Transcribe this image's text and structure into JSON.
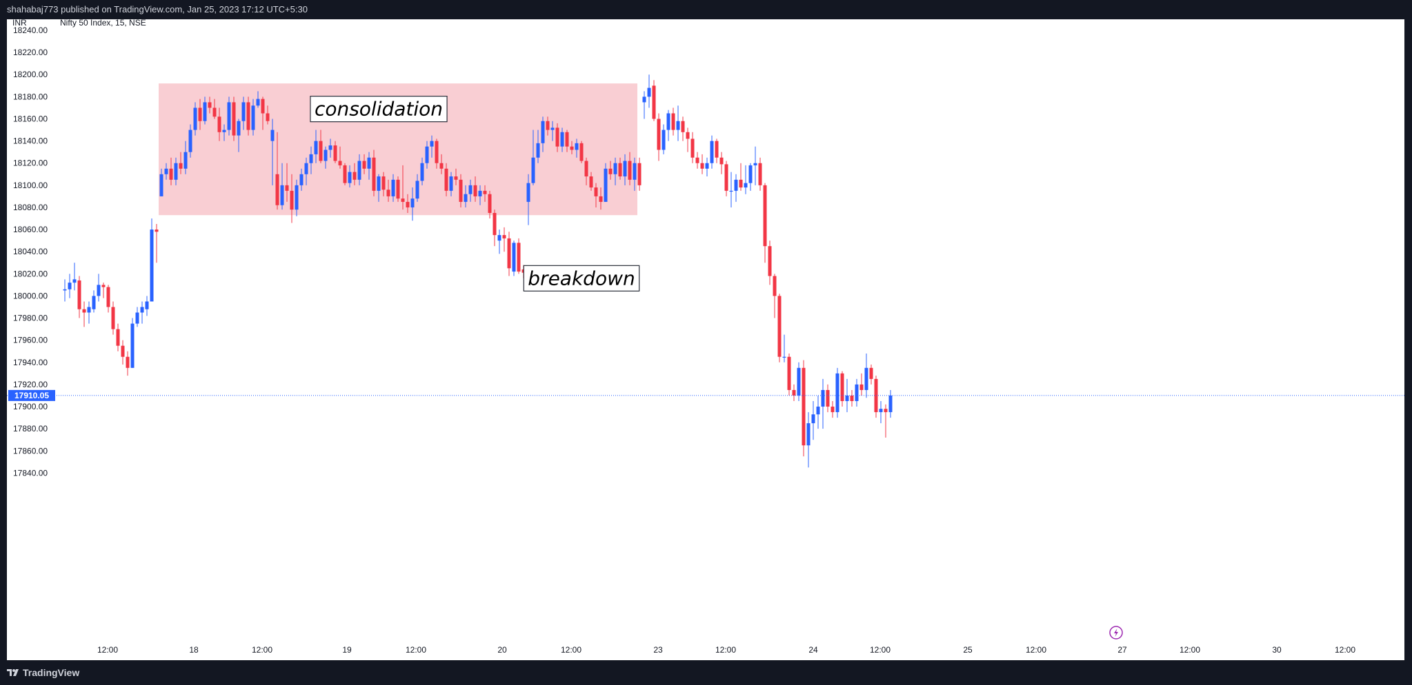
{
  "header": {
    "published": "shahabaj773 published on TradingView.com, Jan 25, 2023 17:12 UTC+5:30"
  },
  "footer": {
    "brand": "TradingView"
  },
  "chart_data": {
    "type": "candlestick",
    "currency": "INR",
    "symbol": "Nifty 50 Index, 15, NSE",
    "colors": {
      "up": "#2962ff",
      "down": "#f23645",
      "zone": "#f9ced3",
      "last_price": "#2962ff"
    },
    "ylim": [
      17830,
      18250
    ],
    "y_ticks": [
      "18240.00",
      "18220.00",
      "18200.00",
      "18180.00",
      "18160.00",
      "18140.00",
      "18120.00",
      "18100.00",
      "18080.00",
      "18060.00",
      "18040.00",
      "18020.00",
      "18000.00",
      "17980.00",
      "17960.00",
      "17940.00",
      "17920.00",
      "17900.00",
      "17880.00",
      "17860.00",
      "17840.00"
    ],
    "x_ticks": [
      "12:00",
      "18",
      "12:00",
      "19",
      "12:00",
      "20",
      "12:00",
      "23",
      "12:00",
      "24",
      "12:00",
      "25",
      "12:00",
      "27",
      "12:00",
      "30",
      "12:00"
    ],
    "last_price": "17910.05",
    "consolidation_zone": {
      "from_candle": 20,
      "to_candle": 118,
      "top": 18192,
      "bottom": 18073
    },
    "annotations": [
      {
        "text": "consolidation",
        "candle": 65,
        "price": 18168
      },
      {
        "text": "breakdown",
        "candle": 107,
        "price": 18015
      }
    ],
    "candles": [
      {
        "o": 18005,
        "h": 18015,
        "l": 17995,
        "c": 18006
      },
      {
        "o": 18006,
        "h": 18020,
        "l": 17998,
        "c": 18012
      },
      {
        "o": 18012,
        "h": 18030,
        "l": 18005,
        "c": 18015
      },
      {
        "o": 18014,
        "h": 18018,
        "l": 17980,
        "c": 17988
      },
      {
        "o": 17988,
        "h": 17995,
        "l": 17972,
        "c": 17985
      },
      {
        "o": 17985,
        "h": 17995,
        "l": 17975,
        "c": 17990
      },
      {
        "o": 17988,
        "h": 18005,
        "l": 17985,
        "c": 18000
      },
      {
        "o": 18000,
        "h": 18020,
        "l": 17995,
        "c": 18010
      },
      {
        "o": 18010,
        "h": 18012,
        "l": 17998,
        "c": 18008
      },
      {
        "o": 18008,
        "h": 18010,
        "l": 17985,
        "c": 17990
      },
      {
        "o": 17990,
        "h": 17995,
        "l": 17965,
        "c": 17970
      },
      {
        "o": 17970,
        "h": 17975,
        "l": 17950,
        "c": 17955
      },
      {
        "o": 17955,
        "h": 17960,
        "l": 17938,
        "c": 17945
      },
      {
        "o": 17945,
        "h": 17950,
        "l": 17928,
        "c": 17935
      },
      {
        "o": 17935,
        "h": 17980,
        "l": 17935,
        "c": 17975
      },
      {
        "o": 17975,
        "h": 17990,
        "l": 17972,
        "c": 17985
      },
      {
        "o": 17985,
        "h": 17995,
        "l": 17975,
        "c": 17990
      },
      {
        "o": 17988,
        "h": 18000,
        "l": 17982,
        "c": 17995
      },
      {
        "o": 17995,
        "h": 18070,
        "l": 17995,
        "c": 18060
      },
      {
        "o": 18060,
        "h": 18065,
        "l": 18030,
        "c": 18058
      },
      {
        "o": 18090,
        "h": 18115,
        "l": 18090,
        "c": 18110
      },
      {
        "o": 18110,
        "h": 18120,
        "l": 18105,
        "c": 18115
      },
      {
        "o": 18115,
        "h": 18125,
        "l": 18100,
        "c": 18105
      },
      {
        "o": 18105,
        "h": 18125,
        "l": 18100,
        "c": 18120
      },
      {
        "o": 18120,
        "h": 18130,
        "l": 18110,
        "c": 18115
      },
      {
        "o": 18115,
        "h": 18140,
        "l": 18110,
        "c": 18130
      },
      {
        "o": 18130,
        "h": 18155,
        "l": 18125,
        "c": 18150
      },
      {
        "o": 18150,
        "h": 18175,
        "l": 18145,
        "c": 18170
      },
      {
        "o": 18170,
        "h": 18178,
        "l": 18150,
        "c": 18158
      },
      {
        "o": 18158,
        "h": 18180,
        "l": 18155,
        "c": 18175
      },
      {
        "o": 18175,
        "h": 18180,
        "l": 18165,
        "c": 18170
      },
      {
        "o": 18170,
        "h": 18178,
        "l": 18160,
        "c": 18162
      },
      {
        "o": 18162,
        "h": 18170,
        "l": 18140,
        "c": 18148
      },
      {
        "o": 18148,
        "h": 18155,
        "l": 18140,
        "c": 18150
      },
      {
        "o": 18150,
        "h": 18180,
        "l": 18145,
        "c": 18175
      },
      {
        "o": 18175,
        "h": 18180,
        "l": 18140,
        "c": 18145
      },
      {
        "o": 18145,
        "h": 18160,
        "l": 18130,
        "c": 18158
      },
      {
        "o": 18158,
        "h": 18180,
        "l": 18150,
        "c": 18175
      },
      {
        "o": 18175,
        "h": 18180,
        "l": 18145,
        "c": 18150
      },
      {
        "o": 18150,
        "h": 18178,
        "l": 18145,
        "c": 18172
      },
      {
        "o": 18172,
        "h": 18185,
        "l": 18170,
        "c": 18178
      },
      {
        "o": 18178,
        "h": 18180,
        "l": 18150,
        "c": 18165
      },
      {
        "o": 18165,
        "h": 18172,
        "l": 18155,
        "c": 18158
      },
      {
        "o": 18140,
        "h": 18160,
        "l": 18100,
        "c": 18150
      },
      {
        "o": 18110,
        "h": 18148,
        "l": 18078,
        "c": 18082
      },
      {
        "o": 18082,
        "h": 18120,
        "l": 18078,
        "c": 18100
      },
      {
        "o": 18100,
        "h": 18120,
        "l": 18085,
        "c": 18095
      },
      {
        "o": 18095,
        "h": 18110,
        "l": 18066,
        "c": 18078
      },
      {
        "o": 18078,
        "h": 18105,
        "l": 18072,
        "c": 18100
      },
      {
        "o": 18100,
        "h": 18115,
        "l": 18095,
        "c": 18110
      },
      {
        "o": 18110,
        "h": 18125,
        "l": 18100,
        "c": 18120
      },
      {
        "o": 18120,
        "h": 18135,
        "l": 18110,
        "c": 18128
      },
      {
        "o": 18128,
        "h": 18150,
        "l": 18120,
        "c": 18140
      },
      {
        "o": 18140,
        "h": 18150,
        "l": 18120,
        "c": 18122
      },
      {
        "o": 18122,
        "h": 18135,
        "l": 18115,
        "c": 18132
      },
      {
        "o": 18132,
        "h": 18142,
        "l": 18125,
        "c": 18136
      },
      {
        "o": 18136,
        "h": 18140,
        "l": 18120,
        "c": 18122
      },
      {
        "o": 18122,
        "h": 18135,
        "l": 18115,
        "c": 18118
      },
      {
        "o": 18118,
        "h": 18120,
        "l": 18100,
        "c": 18102
      },
      {
        "o": 18102,
        "h": 18118,
        "l": 18098,
        "c": 18112
      },
      {
        "o": 18112,
        "h": 18120,
        "l": 18100,
        "c": 18105
      },
      {
        "o": 18105,
        "h": 18128,
        "l": 18100,
        "c": 18122
      },
      {
        "o": 18122,
        "h": 18128,
        "l": 18110,
        "c": 18115
      },
      {
        "o": 18115,
        "h": 18130,
        "l": 18105,
        "c": 18125
      },
      {
        "o": 18125,
        "h": 18132,
        "l": 18090,
        "c": 18095
      },
      {
        "o": 18095,
        "h": 18110,
        "l": 18085,
        "c": 18108
      },
      {
        "o": 18108,
        "h": 18112,
        "l": 18090,
        "c": 18096
      },
      {
        "o": 18096,
        "h": 18105,
        "l": 18085,
        "c": 18090
      },
      {
        "o": 18090,
        "h": 18110,
        "l": 18085,
        "c": 18105
      },
      {
        "o": 18105,
        "h": 18108,
        "l": 18085,
        "c": 18088
      },
      {
        "o": 18088,
        "h": 18118,
        "l": 18078,
        "c": 18085
      },
      {
        "o": 18085,
        "h": 18092,
        "l": 18075,
        "c": 18080
      },
      {
        "o": 18080,
        "h": 18098,
        "l": 18068,
        "c": 18088
      },
      {
        "o": 18088,
        "h": 18110,
        "l": 18085,
        "c": 18104
      },
      {
        "o": 18104,
        "h": 18125,
        "l": 18100,
        "c": 18120
      },
      {
        "o": 18120,
        "h": 18140,
        "l": 18115,
        "c": 18135
      },
      {
        "o": 18135,
        "h": 18145,
        "l": 18125,
        "c": 18140
      },
      {
        "o": 18140,
        "h": 18142,
        "l": 18115,
        "c": 18120
      },
      {
        "o": 18120,
        "h": 18128,
        "l": 18110,
        "c": 18115
      },
      {
        "o": 18115,
        "h": 18120,
        "l": 18090,
        "c": 18095
      },
      {
        "o": 18095,
        "h": 18112,
        "l": 18090,
        "c": 18108
      },
      {
        "o": 18108,
        "h": 18115,
        "l": 18100,
        "c": 18105
      },
      {
        "o": 18105,
        "h": 18110,
        "l": 18080,
        "c": 18085
      },
      {
        "o": 18085,
        "h": 18100,
        "l": 18080,
        "c": 18092
      },
      {
        "o": 18092,
        "h": 18105,
        "l": 18085,
        "c": 18100
      },
      {
        "o": 18100,
        "h": 18108,
        "l": 18085,
        "c": 18090
      },
      {
        "o": 18090,
        "h": 18100,
        "l": 18082,
        "c": 18095
      },
      {
        "o": 18095,
        "h": 18100,
        "l": 18085,
        "c": 18092
      },
      {
        "o": 18092,
        "h": 18095,
        "l": 18070,
        "c": 18075
      },
      {
        "o": 18075,
        "h": 18078,
        "l": 18045,
        "c": 18055
      },
      {
        "o": 18050,
        "h": 18060,
        "l": 18038,
        "c": 18055
      },
      {
        "o": 18055,
        "h": 18062,
        "l": 18040,
        "c": 18052
      },
      {
        "o": 18052,
        "h": 18058,
        "l": 18018,
        "c": 18025
      },
      {
        "o": 18022,
        "h": 18050,
        "l": 18018,
        "c": 18048
      },
      {
        "o": 18048,
        "h": 18052,
        "l": 18020,
        "c": 18022
      },
      {
        "o": 18024,
        "h": 18028,
        "l": 18016,
        "c": 18021
      },
      {
        "o": 18085,
        "h": 18110,
        "l": 18064,
        "c": 18102
      },
      {
        "o": 18102,
        "h": 18150,
        "l": 18100,
        "c": 18125
      },
      {
        "o": 18125,
        "h": 18150,
        "l": 18120,
        "c": 18138
      },
      {
        "o": 18138,
        "h": 18162,
        "l": 18130,
        "c": 18158
      },
      {
        "o": 18158,
        "h": 18162,
        "l": 18145,
        "c": 18150
      },
      {
        "o": 18150,
        "h": 18158,
        "l": 18140,
        "c": 18152
      },
      {
        "o": 18152,
        "h": 18156,
        "l": 18130,
        "c": 18135
      },
      {
        "o": 18135,
        "h": 18152,
        "l": 18130,
        "c": 18148
      },
      {
        "o": 18148,
        "h": 18150,
        "l": 18130,
        "c": 18135
      },
      {
        "o": 18135,
        "h": 18140,
        "l": 18128,
        "c": 18132
      },
      {
        "o": 18132,
        "h": 18142,
        "l": 18125,
        "c": 18138
      },
      {
        "o": 18138,
        "h": 18140,
        "l": 18120,
        "c": 18122
      },
      {
        "o": 18122,
        "h": 18125,
        "l": 18100,
        "c": 18108
      },
      {
        "o": 18108,
        "h": 18112,
        "l": 18095,
        "c": 18098
      },
      {
        "o": 18098,
        "h": 18102,
        "l": 18080,
        "c": 18090
      },
      {
        "o": 18090,
        "h": 18098,
        "l": 18078,
        "c": 18085
      },
      {
        "o": 18085,
        "h": 18120,
        "l": 18085,
        "c": 18115
      },
      {
        "o": 18115,
        "h": 18122,
        "l": 18105,
        "c": 18110
      },
      {
        "o": 18110,
        "h": 18125,
        "l": 18100,
        "c": 18120
      },
      {
        "o": 18120,
        "h": 18125,
        "l": 18105,
        "c": 18108
      },
      {
        "o": 18108,
        "h": 18128,
        "l": 18100,
        "c": 18122
      },
      {
        "o": 18122,
        "h": 18130,
        "l": 18100,
        "c": 18105
      },
      {
        "o": 18105,
        "h": 18125,
        "l": 18095,
        "c": 18120
      },
      {
        "o": 18120,
        "h": 18125,
        "l": 18095,
        "c": 18100
      },
      {
        "o": 18175,
        "h": 18185,
        "l": 18160,
        "c": 18180
      },
      {
        "o": 18180,
        "h": 18200,
        "l": 18170,
        "c": 18188
      },
      {
        "o": 18190,
        "h": 18195,
        "l": 18158,
        "c": 18160
      },
      {
        "o": 18160,
        "h": 18165,
        "l": 18122,
        "c": 18132
      },
      {
        "o": 18132,
        "h": 18155,
        "l": 18128,
        "c": 18150
      },
      {
        "o": 18150,
        "h": 18168,
        "l": 18140,
        "c": 18165
      },
      {
        "o": 18165,
        "h": 18170,
        "l": 18145,
        "c": 18150
      },
      {
        "o": 18150,
        "h": 18172,
        "l": 18140,
        "c": 18158
      },
      {
        "o": 18158,
        "h": 18162,
        "l": 18140,
        "c": 18148
      },
      {
        "o": 18148,
        "h": 18152,
        "l": 18130,
        "c": 18142
      },
      {
        "o": 18142,
        "h": 18148,
        "l": 18120,
        "c": 18125
      },
      {
        "o": 18125,
        "h": 18130,
        "l": 18115,
        "c": 18120
      },
      {
        "o": 18120,
        "h": 18128,
        "l": 18110,
        "c": 18115
      },
      {
        "o": 18115,
        "h": 18125,
        "l": 18108,
        "c": 18120
      },
      {
        "o": 18120,
        "h": 18145,
        "l": 18115,
        "c": 18140
      },
      {
        "o": 18140,
        "h": 18142,
        "l": 18120,
        "c": 18125
      },
      {
        "o": 18125,
        "h": 18130,
        "l": 18110,
        "c": 18119
      },
      {
        "o": 18119,
        "h": 18122,
        "l": 18090,
        "c": 18095
      },
      {
        "o": 18095,
        "h": 18112,
        "l": 18080,
        "c": 18095
      },
      {
        "o": 18095,
        "h": 18110,
        "l": 18085,
        "c": 18105
      },
      {
        "o": 18105,
        "h": 18120,
        "l": 18095,
        "c": 18098
      },
      {
        "o": 18098,
        "h": 18118,
        "l": 18092,
        "c": 18102
      },
      {
        "o": 18102,
        "h": 18120,
        "l": 18095,
        "c": 18118
      },
      {
        "o": 18118,
        "h": 18135,
        "l": 18100,
        "c": 18120
      },
      {
        "o": 18120,
        "h": 18125,
        "l": 18095,
        "c": 18100
      },
      {
        "o": 18100,
        "h": 18102,
        "l": 18030,
        "c": 18045
      },
      {
        "o": 18045,
        "h": 18050,
        "l": 18010,
        "c": 18018
      },
      {
        "o": 18018,
        "h": 18020,
        "l": 17980,
        "c": 18000
      },
      {
        "o": 18000,
        "h": 18002,
        "l": 17940,
        "c": 17945
      },
      {
        "o": 17945,
        "h": 17965,
        "l": 17940,
        "c": 17945
      },
      {
        "o": 17945,
        "h": 17948,
        "l": 17910,
        "c": 17915
      },
      {
        "o": 17915,
        "h": 17920,
        "l": 17905,
        "c": 17910
      },
      {
        "o": 17910,
        "h": 17940,
        "l": 17905,
        "c": 17935
      },
      {
        "o": 17935,
        "h": 17942,
        "l": 17855,
        "c": 17865
      },
      {
        "o": 17865,
        "h": 17895,
        "l": 17845,
        "c": 17885
      },
      {
        "o": 17885,
        "h": 17905,
        "l": 17870,
        "c": 17893
      },
      {
        "o": 17893,
        "h": 17910,
        "l": 17880,
        "c": 17900
      },
      {
        "o": 17900,
        "h": 17925,
        "l": 17880,
        "c": 17915
      },
      {
        "o": 17915,
        "h": 17920,
        "l": 17895,
        "c": 17900
      },
      {
        "o": 17900,
        "h": 17905,
        "l": 17890,
        "c": 17895
      },
      {
        "o": 17895,
        "h": 17935,
        "l": 17890,
        "c": 17930
      },
      {
        "o": 17930,
        "h": 17932,
        "l": 17900,
        "c": 17905
      },
      {
        "o": 17905,
        "h": 17925,
        "l": 17895,
        "c": 17910
      },
      {
        "o": 17910,
        "h": 17915,
        "l": 17900,
        "c": 17905
      },
      {
        "o": 17905,
        "h": 17925,
        "l": 17900,
        "c": 17920
      },
      {
        "o": 17920,
        "h": 17930,
        "l": 17910,
        "c": 17915
      },
      {
        "o": 17915,
        "h": 17948,
        "l": 17908,
        "c": 17935
      },
      {
        "o": 17935,
        "h": 17938,
        "l": 17920,
        "c": 17925
      },
      {
        "o": 17925,
        "h": 17928,
        "l": 17890,
        "c": 17895
      },
      {
        "o": 17895,
        "h": 17905,
        "l": 17885,
        "c": 17898
      },
      {
        "o": 17898,
        "h": 17902,
        "l": 17872,
        "c": 17895
      },
      {
        "o": 17895,
        "h": 17915,
        "l": 17890,
        "c": 17910
      }
    ]
  }
}
